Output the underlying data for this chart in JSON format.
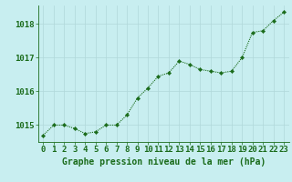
{
  "hours": [
    0,
    1,
    2,
    3,
    4,
    5,
    6,
    7,
    8,
    9,
    10,
    11,
    12,
    13,
    14,
    15,
    16,
    17,
    18,
    19,
    20,
    21,
    22,
    23
  ],
  "pressure": [
    1014.7,
    1015.0,
    1015.0,
    1014.9,
    1014.75,
    1014.8,
    1015.0,
    1015.0,
    1015.3,
    1015.8,
    1016.1,
    1016.45,
    1016.55,
    1016.9,
    1016.8,
    1016.65,
    1016.6,
    1016.55,
    1016.6,
    1017.0,
    1017.75,
    1017.8,
    1018.1,
    1018.35
  ],
  "line_color": "#1a6b1a",
  "marker_color": "#1a6b1a",
  "background_color": "#c8eef0",
  "grid_color": "#b0d8da",
  "axis_label_color": "#1a6b1a",
  "title": "Graphe pression niveau de la mer (hPa)",
  "ylim_min": 1014.5,
  "ylim_max": 1018.55,
  "yticks": [
    1015,
    1016,
    1017,
    1018
  ],
  "tick_fontsize": 6.5,
  "title_fontsize": 7.0
}
